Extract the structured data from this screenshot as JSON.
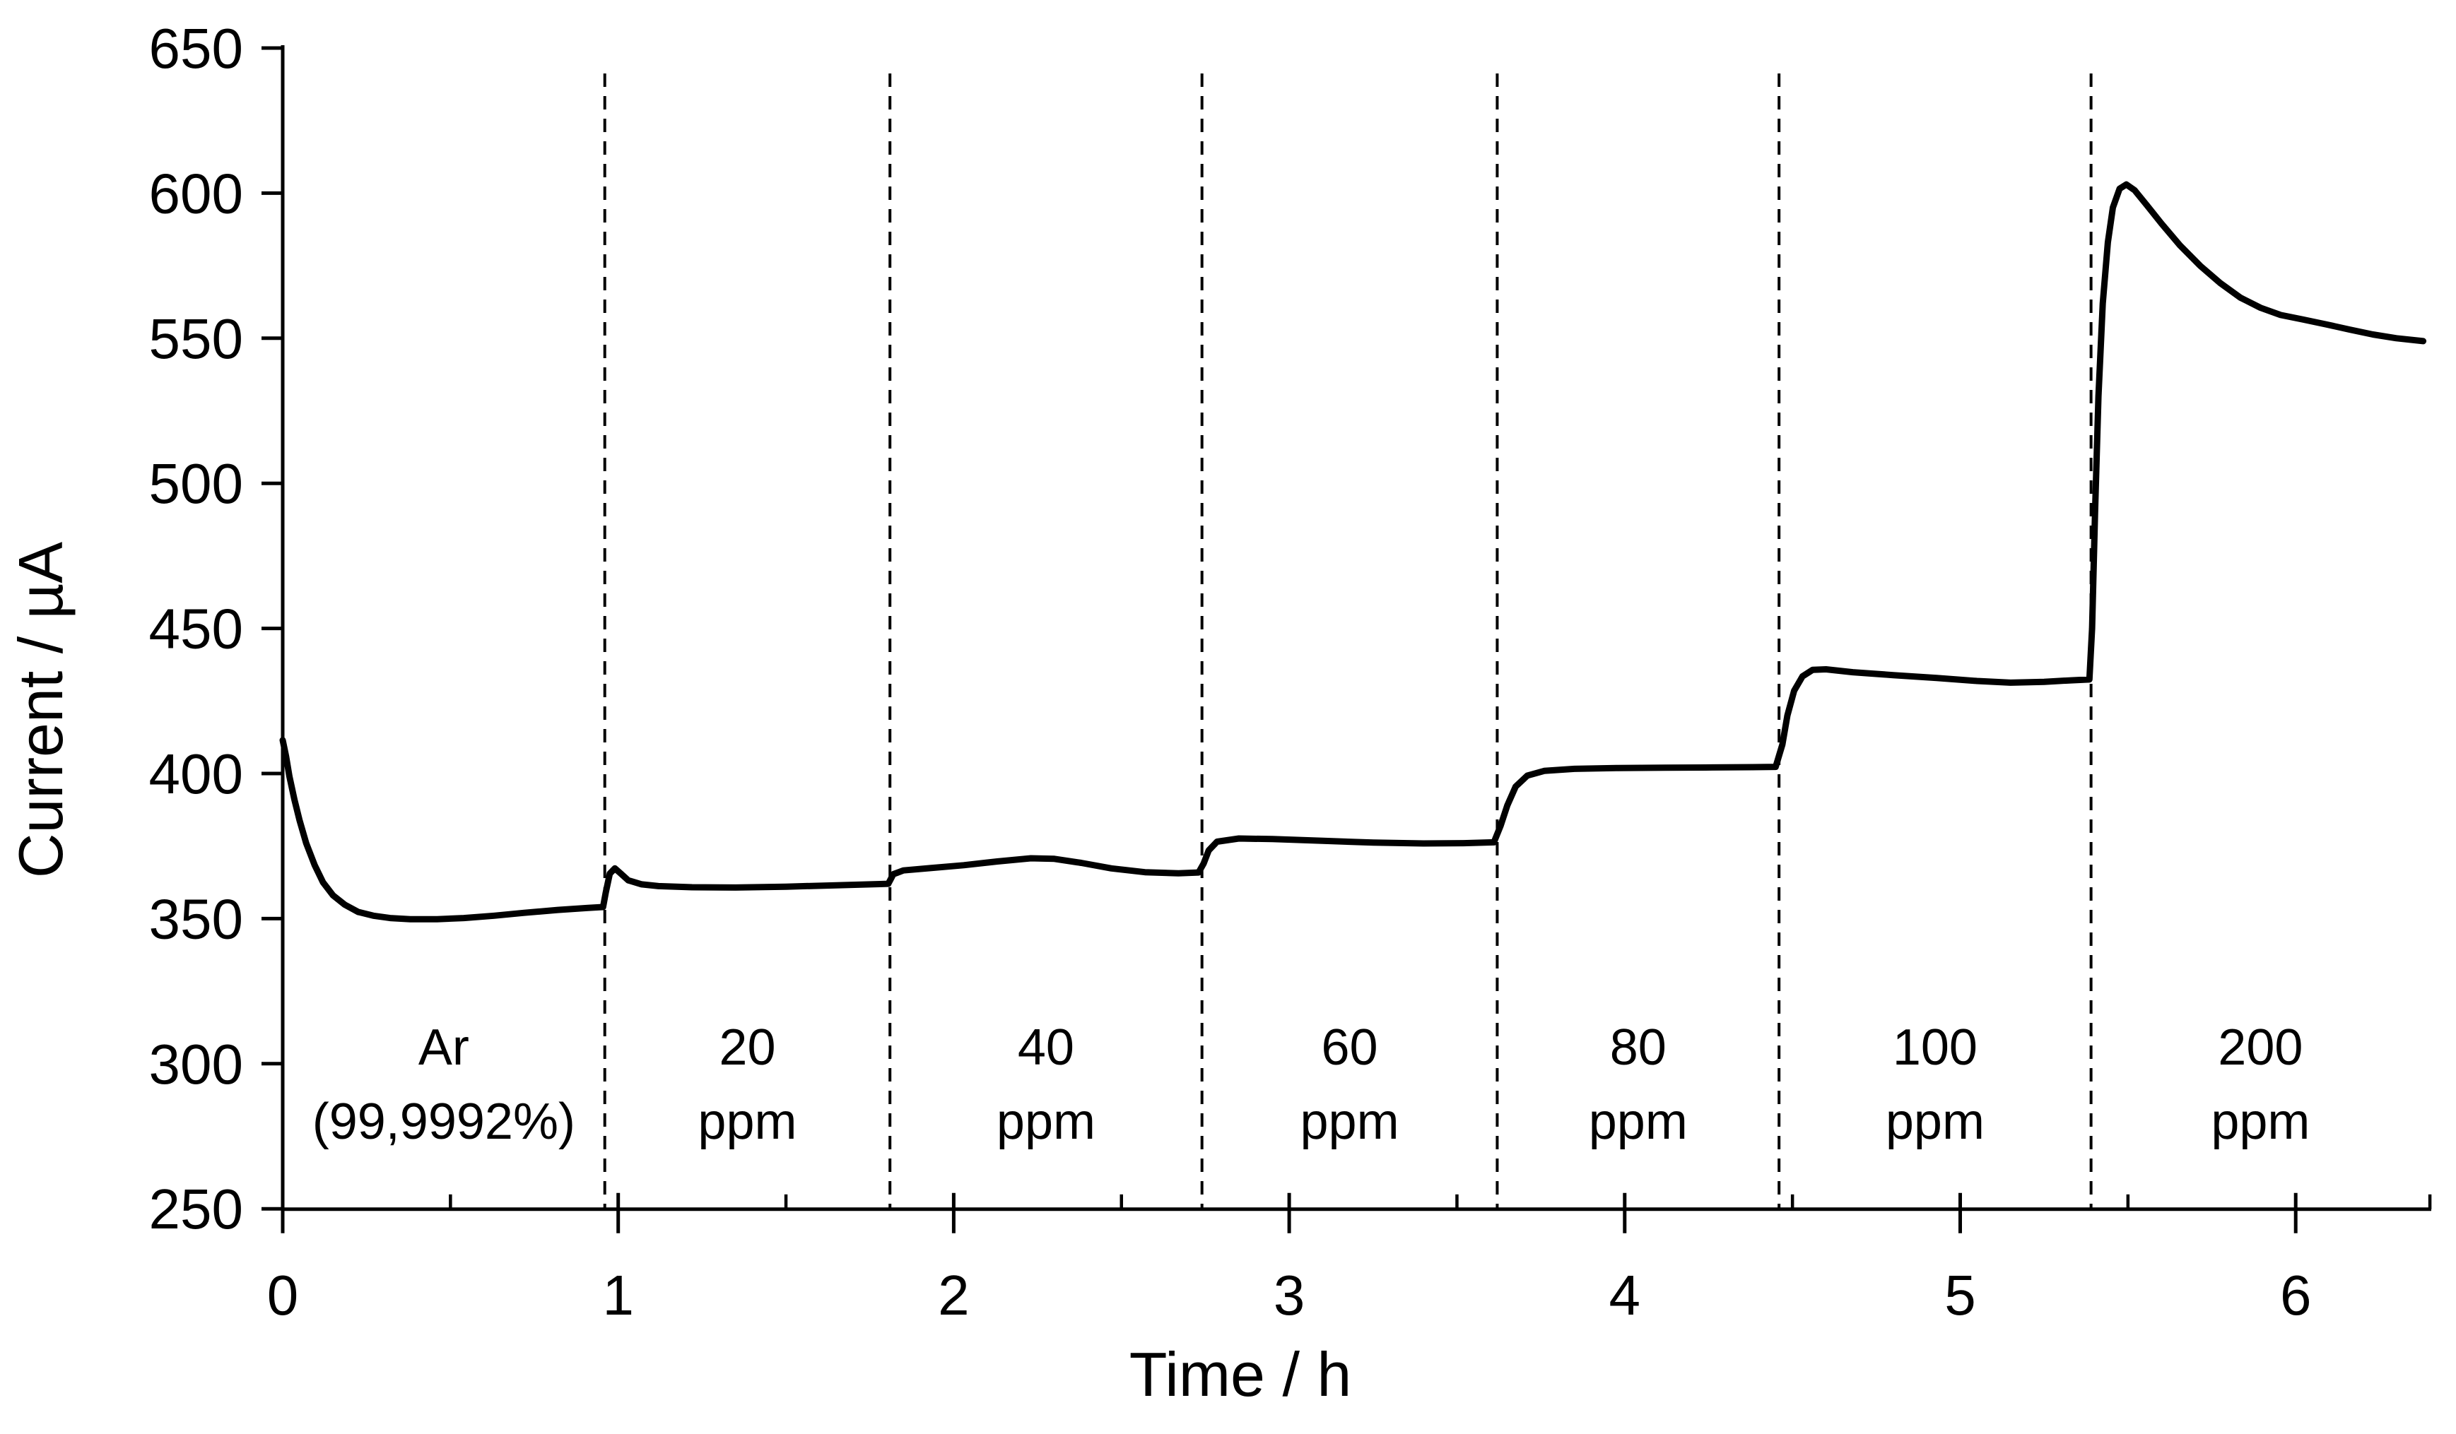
{
  "page": {
    "background": "#ffffff",
    "foreground": "#000000"
  },
  "chart_data": {
    "type": "line",
    "title": "",
    "xlabel": "Time / h",
    "ylabel": "Current / µA",
    "xlim": [
      0,
      6.45
    ],
    "ylim": [
      250,
      650
    ],
    "grid": false,
    "legend_position": "none",
    "axis_color": "#000000",
    "line_color": "#000000",
    "y_ticks": [
      250,
      300,
      350,
      400,
      450,
      500,
      550,
      600,
      650
    ],
    "x_major_ticks": [
      0,
      1,
      2,
      3,
      4,
      5,
      6
    ],
    "x_minor_ticks": [
      0.5,
      1.5,
      2.5,
      3.5,
      4.5,
      5.5,
      6.4
    ],
    "boundaries_t": [
      0.96,
      1.81,
      2.74,
      3.62,
      4.46,
      5.39
    ],
    "regions": [
      {
        "label_line1": "Ar",
        "label_line2": "(99,9992%)",
        "t_center": 0.48
      },
      {
        "label_line1": "20",
        "label_line2": "ppm",
        "t_center": 1.385
      },
      {
        "label_line1": "40",
        "label_line2": "ppm",
        "t_center": 2.275
      },
      {
        "label_line1": "60",
        "label_line2": "ppm",
        "t_center": 3.18
      },
      {
        "label_line1": "80",
        "label_line2": "ppm",
        "t_center": 4.04
      },
      {
        "label_line1": "100",
        "label_line2": "ppm",
        "t_center": 4.925
      },
      {
        "label_line1": "200",
        "label_line2": "ppm",
        "t_center": 5.895
      }
    ],
    "series": [
      {
        "name": "current",
        "points": [
          [
            0,
            411.5
          ],
          [
            0.01,
            406
          ],
          [
            0.02,
            399
          ],
          [
            0.035,
            391
          ],
          [
            0.05,
            384
          ],
          [
            0.07,
            376
          ],
          [
            0.095,
            368.5
          ],
          [
            0.12,
            362.5
          ],
          [
            0.15,
            358
          ],
          [
            0.185,
            354.8
          ],
          [
            0.225,
            352.3
          ],
          [
            0.27,
            351
          ],
          [
            0.32,
            350.2
          ],
          [
            0.38,
            349.8
          ],
          [
            0.46,
            349.8
          ],
          [
            0.54,
            350.2
          ],
          [
            0.63,
            351
          ],
          [
            0.72,
            352
          ],
          [
            0.82,
            353
          ],
          [
            0.91,
            353.7
          ],
          [
            0.955,
            354
          ],
          [
            0.963,
            359
          ],
          [
            0.975,
            365.5
          ],
          [
            0.99,
            367.3
          ],
          [
            1.005,
            365.8
          ],
          [
            1.03,
            363.2
          ],
          [
            1.07,
            361.8
          ],
          [
            1.12,
            361.2
          ],
          [
            1.22,
            360.8
          ],
          [
            1.35,
            360.7
          ],
          [
            1.5,
            361
          ],
          [
            1.65,
            361.5
          ],
          [
            1.78,
            361.9
          ],
          [
            1.805,
            362
          ],
          [
            1.82,
            365.3
          ],
          [
            1.85,
            366.6
          ],
          [
            1.93,
            367.4
          ],
          [
            2.03,
            368.4
          ],
          [
            2.13,
            369.7
          ],
          [
            2.23,
            370.8
          ],
          [
            2.3,
            370.6
          ],
          [
            2.38,
            369.2
          ],
          [
            2.47,
            367.3
          ],
          [
            2.57,
            366
          ],
          [
            2.67,
            365.6
          ],
          [
            2.73,
            365.9
          ],
          [
            2.745,
            369
          ],
          [
            2.76,
            373.5
          ],
          [
            2.785,
            376.5
          ],
          [
            2.85,
            377.6
          ],
          [
            2.95,
            377.4
          ],
          [
            3.1,
            376.8
          ],
          [
            3.25,
            376.2
          ],
          [
            3.4,
            375.9
          ],
          [
            3.52,
            376
          ],
          [
            3.61,
            376.3
          ],
          [
            3.63,
            382
          ],
          [
            3.65,
            389
          ],
          [
            3.675,
            395.5
          ],
          [
            3.71,
            399.3
          ],
          [
            3.76,
            400.9
          ],
          [
            3.85,
            401.6
          ],
          [
            3.98,
            401.9
          ],
          [
            4.12,
            402
          ],
          [
            4.26,
            402.1
          ],
          [
            4.38,
            402.2
          ],
          [
            4.45,
            402.3
          ],
          [
            4.47,
            410
          ],
          [
            4.485,
            420
          ],
          [
            4.505,
            428.5
          ],
          [
            4.53,
            433.5
          ],
          [
            4.56,
            435.7
          ],
          [
            4.6,
            435.9
          ],
          [
            4.68,
            434.9
          ],
          [
            4.8,
            433.9
          ],
          [
            4.93,
            432.9
          ],
          [
            5.05,
            431.9
          ],
          [
            5.15,
            431.3
          ],
          [
            5.25,
            431.6
          ],
          [
            5.33,
            432.1
          ],
          [
            5.385,
            432.4
          ],
          [
            5.393,
            450
          ],
          [
            5.402,
            490
          ],
          [
            5.412,
            530
          ],
          [
            5.425,
            562
          ],
          [
            5.44,
            583
          ],
          [
            5.455,
            595
          ],
          [
            5.475,
            601.5
          ],
          [
            5.495,
            603
          ],
          [
            5.52,
            601
          ],
          [
            5.555,
            596
          ],
          [
            5.6,
            589.5
          ],
          [
            5.655,
            582
          ],
          [
            5.715,
            575
          ],
          [
            5.775,
            569
          ],
          [
            5.835,
            564
          ],
          [
            5.895,
            560.5
          ],
          [
            5.955,
            558
          ],
          [
            6.02,
            556.5
          ],
          [
            6.09,
            554.8
          ],
          [
            6.16,
            553
          ],
          [
            6.23,
            551.3
          ],
          [
            6.3,
            550
          ],
          [
            6.38,
            549
          ]
        ]
      }
    ]
  }
}
